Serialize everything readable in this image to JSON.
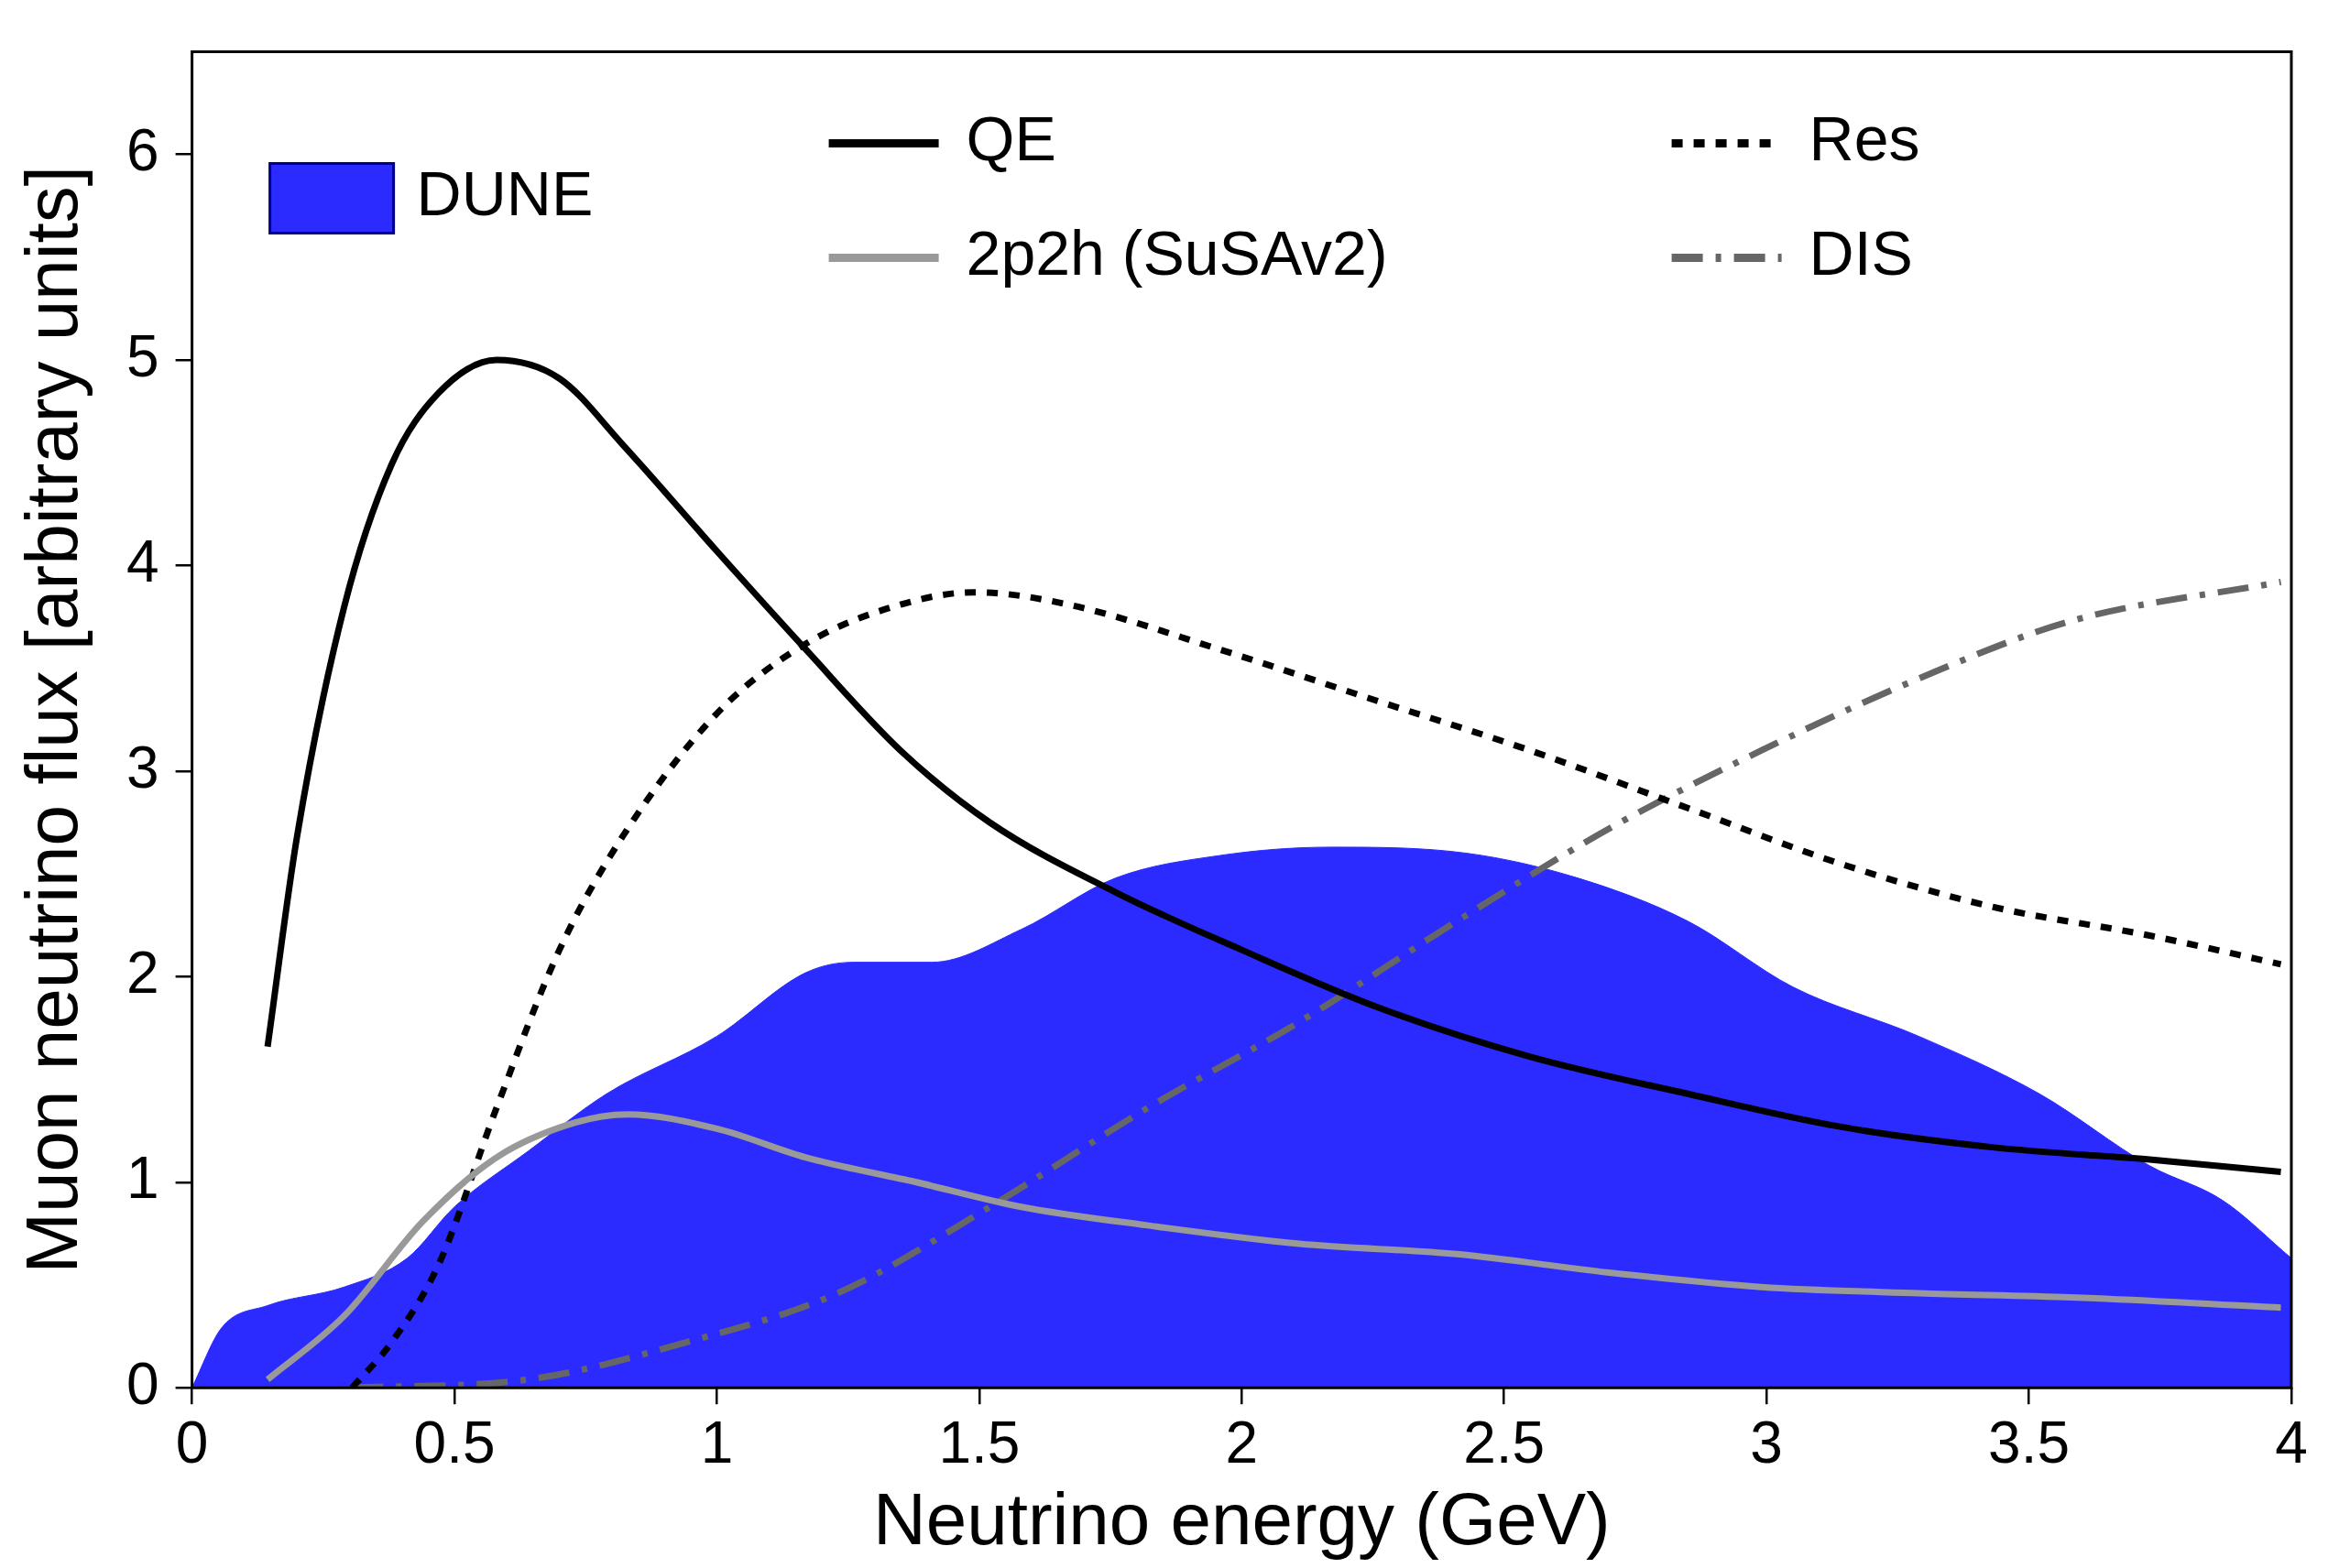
{
  "chart_data": {
    "type": "line",
    "xlabel": "Neutrino energy (GeV)",
    "ylabel": "Muon neutrino flux [arbitrary units]",
    "xlim": [
      0,
      4
    ],
    "xticks": [
      0,
      0.5,
      1,
      1.5,
      2,
      2.5,
      3,
      3.5,
      4
    ],
    "ylim": [
      0,
      6.5
    ],
    "yticks": [
      0,
      1,
      2,
      3,
      4,
      5,
      6
    ],
    "grid": false,
    "legend": "top",
    "marker": "none",
    "series": [
      {
        "name": "DUNE",
        "type": "area",
        "color": "#2b2bff",
        "x": [
          0,
          0.056,
          0.144,
          0.29,
          0.41,
          0.5,
          0.64,
          0.79,
          1.0,
          1.17,
          1.26,
          1.41,
          1.58,
          1.76,
          1.96,
          2.17,
          2.43,
          2.64,
          2.85,
          3.05,
          3.29,
          3.52,
          3.73,
          3.87,
          4.0
        ],
        "values": [
          0,
          0.29,
          0.4,
          0.49,
          0.63,
          0.88,
          1.15,
          1.43,
          1.71,
          2.02,
          2.07,
          2.07,
          2.23,
          2.48,
          2.59,
          2.63,
          2.6,
          2.48,
          2.27,
          1.95,
          1.71,
          1.43,
          1.08,
          0.91,
          0.63
        ]
      },
      {
        "name": "QE",
        "color": "#000000",
        "line_style": "solid",
        "x": [
          0.144,
          0.2,
          0.29,
          0.38,
          0.47,
          0.58,
          0.7,
          0.82,
          1.0,
          1.17,
          1.35,
          1.52,
          1.76,
          2.0,
          2.26,
          2.55,
          2.85,
          3.14,
          3.43,
          3.73,
          3.98
        ],
        "values": [
          1.66,
          2.68,
          3.8,
          4.49,
          4.84,
          5.0,
          4.91,
          4.59,
          4.07,
          3.59,
          3.1,
          2.75,
          2.41,
          2.13,
          1.85,
          1.61,
          1.43,
          1.27,
          1.17,
          1.11,
          1.05
        ]
      },
      {
        "name": "2p2h (SuSAv2)",
        "color": "#999999",
        "line_style": "solid",
        "x": [
          0.144,
          0.29,
          0.44,
          0.58,
          0.73,
          0.83,
          1.0,
          1.17,
          1.38,
          1.58,
          1.82,
          2.11,
          2.41,
          2.7,
          2.99,
          3.29,
          3.58,
          3.98
        ],
        "values": [
          0.04,
          0.35,
          0.81,
          1.12,
          1.29,
          1.33,
          1.26,
          1.12,
          1.0,
          0.88,
          0.79,
          0.7,
          0.65,
          0.56,
          0.49,
          0.46,
          0.44,
          0.39
        ]
      },
      {
        "name": "Res",
        "color": "#000000",
        "line_style": "dotted",
        "x": [
          0.305,
          0.38,
          0.47,
          0.58,
          0.7,
          0.82,
          1.0,
          1.17,
          1.35,
          1.49,
          1.67,
          1.96,
          2.26,
          2.55,
          2.85,
          3.14,
          3.43,
          3.73,
          3.98
        ],
        "values": [
          0,
          0.22,
          0.6,
          1.36,
          2.13,
          2.68,
          3.28,
          3.62,
          3.81,
          3.87,
          3.81,
          3.59,
          3.34,
          3.1,
          2.82,
          2.55,
          2.34,
          2.2,
          2.06
        ]
      },
      {
        "name": "DIS",
        "color": "#666666",
        "line_style": "dashed",
        "x": [
          0.305,
          0.64,
          0.94,
          1.23,
          1.52,
          1.82,
          2.11,
          2.41,
          2.7,
          2.99,
          3.29,
          3.58,
          3.98
        ],
        "values": [
          0,
          0.04,
          0.22,
          0.46,
          0.88,
          1.36,
          1.78,
          2.27,
          2.72,
          3.1,
          3.45,
          3.73,
          3.92
        ]
      }
    ]
  }
}
